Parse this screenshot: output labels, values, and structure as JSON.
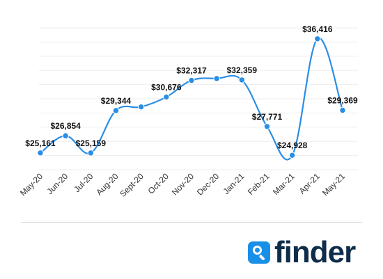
{
  "chart_data": {
    "type": "line",
    "categories": [
      "May-20",
      "Jun-20",
      "Jul-20",
      "Aug-20",
      "Sept-20",
      "Oct-20",
      "Nov-20",
      "Dec-20",
      "Jan-21",
      "Feb-21",
      "Mar-21",
      "Apr-21",
      "May-21"
    ],
    "series": [
      {
        "values": [
          25161,
          26854,
          25159,
          29344,
          29700,
          30676,
          32317,
          32500,
          32359,
          27771,
          24928,
          36416,
          29369
        ],
        "labels": [
          "$25,161",
          "$26,854",
          "$25,159",
          "$29,344",
          "",
          "$30,676",
          "$32,317",
          "",
          "$32,359",
          "$27,771",
          "$24,928",
          "$36,416",
          "$29,369"
        ]
      }
    ],
    "title": "",
    "xlabel": "",
    "ylabel": "",
    "ylim": [
      23500,
      37500
    ],
    "grid": true,
    "legend": "none",
    "line_color": "#2a8ee6"
  },
  "brand": {
    "name": "finder",
    "icon": "magnifier-icon",
    "badge_color": "#1a8fe8",
    "text_color": "#0f2d4a"
  }
}
